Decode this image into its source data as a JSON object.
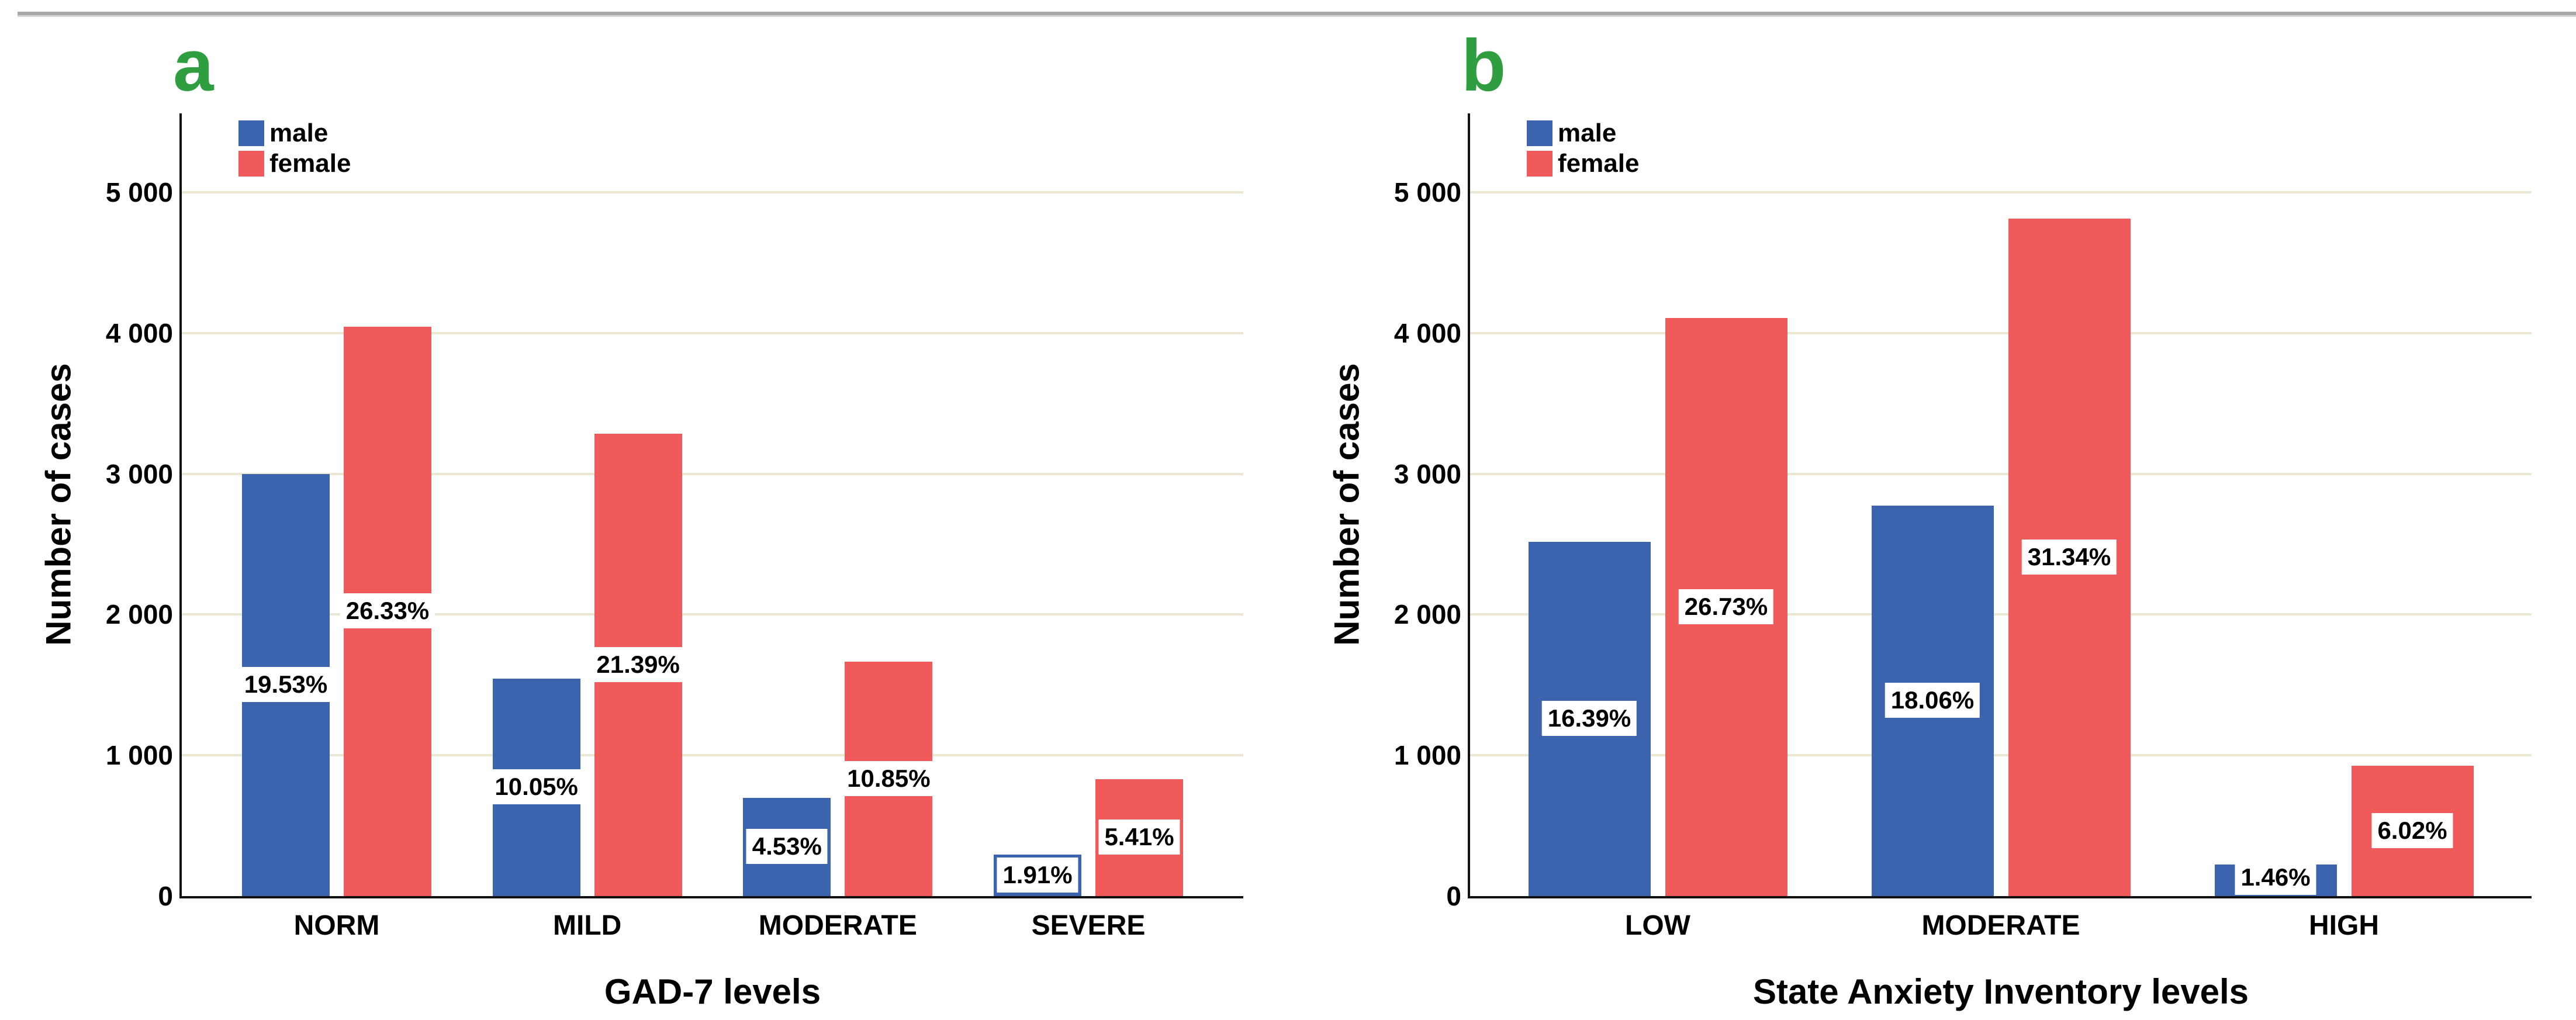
{
  "figure": {
    "background": "#ffffff",
    "top_rule_color": "#a9a9a9",
    "panel_letter_color": "#2f9e41",
    "male_color": "#3c64ae",
    "female_color": "#f15a5a",
    "gridline_color": "#ece7d2",
    "axis_color": "#111111"
  },
  "legend": {
    "items": [
      {
        "label": "male",
        "color": "#3c64ae"
      },
      {
        "label": "female",
        "color": "#f15a5a"
      }
    ]
  },
  "yaxis": {
    "tick_values": [
      0,
      1000,
      2000,
      3000,
      4000,
      5000
    ],
    "tick_labels": [
      "0",
      "1 000",
      "2 000",
      "3 000",
      "4 000",
      "5 000"
    ],
    "max_value": 5560
  },
  "chart_data": [
    {
      "type": "bar",
      "panel_label": "a",
      "xlabel": "GAD-7 levels",
      "ylabel": "Number of cases",
      "categories": [
        "NORM",
        "MILD",
        "MODERATE",
        "SEVERE"
      ],
      "series": [
        {
          "name": "male",
          "values": [
            3000,
            1544,
            696,
            293
          ],
          "percent_labels": [
            "19.53%",
            "10.05%",
            "4.53%",
            "1.91%"
          ]
        },
        {
          "name": "female",
          "values": [
            4044,
            3286,
            1667,
            831
          ],
          "percent_labels": [
            "26.33%",
            "21.39%",
            "10.85%",
            "5.41%"
          ]
        }
      ],
      "ylim": [
        0,
        5560
      ],
      "grid": "horizontal",
      "legend_position": "top-left"
    },
    {
      "type": "bar",
      "panel_label": "b",
      "xlabel": "State Anxiety Inventory levels",
      "ylabel": "Number of cases",
      "categories": [
        "LOW",
        "MODERATE",
        "HIGH"
      ],
      "series": [
        {
          "name": "male",
          "values": [
            2518,
            2774,
            224
          ],
          "percent_labels": [
            "16.39%",
            "18.06%",
            "1.46%"
          ]
        },
        {
          "name": "female",
          "values": [
            4106,
            4814,
            925
          ],
          "percent_labels": [
            "26.73%",
            "31.34%",
            "6.02%"
          ]
        }
      ],
      "ylim": [
        0,
        5560
      ],
      "grid": "horizontal",
      "legend_position": "top-left"
    }
  ]
}
